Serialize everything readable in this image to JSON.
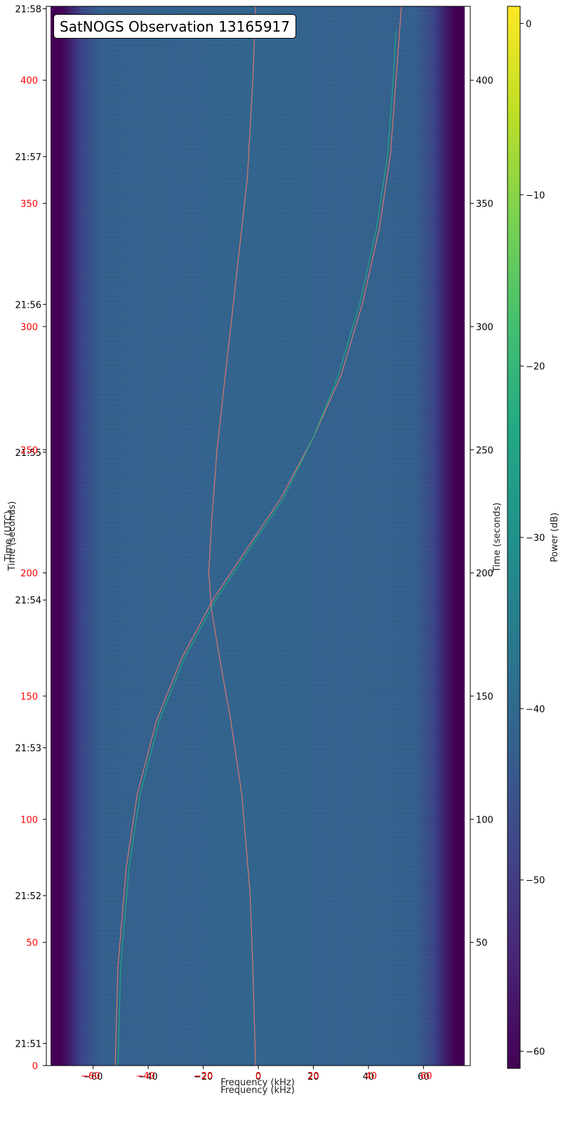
{
  "chart_data": {
    "type": "heatmap",
    "title": "SatNOGS Observation 13165917",
    "xlabel": "Frequency (kHz)",
    "ylabel_left_black": "Time (UTC)",
    "ylabel_left_red": "Time (seconds)",
    "ylabel_right": "Time (seconds)",
    "colorbar_label": "Power (dB)",
    "colormap": "viridis",
    "xlim": [
      -77,
      77
    ],
    "ylim_seconds": [
      0,
      430
    ],
    "colorbar_range": [
      -61,
      1
    ],
    "x_ticks": [
      "−60",
      "−40",
      "−20",
      "0",
      "20",
      "40",
      "60"
    ],
    "x_tick_values": [
      -60,
      -40,
      -20,
      0,
      20,
      40,
      60
    ],
    "x_ticks_red": [
      "−60",
      "−40",
      "−20",
      "0",
      "20",
      "40",
      "60"
    ],
    "x_ticks_red_values": [
      -61,
      -41,
      -20,
      0,
      20,
      41,
      61
    ],
    "y_ticks_utc": [
      "21:51",
      "21:52",
      "21:53",
      "21:54",
      "21:55",
      "21:56",
      "21:57",
      "21:58"
    ],
    "y_ticks_utc_seconds": [
      9,
      69,
      129,
      189,
      249,
      309,
      369,
      429
    ],
    "y_ticks_left_red": [
      "0",
      "50",
      "100",
      "150",
      "200",
      "250",
      "300",
      "350",
      "400"
    ],
    "y_ticks_left_red_values": [
      0,
      50,
      100,
      150,
      200,
      250,
      300,
      350,
      400
    ],
    "y_ticks_right": [
      "50",
      "100",
      "150",
      "200",
      "250",
      "300",
      "350",
      "400"
    ],
    "y_ticks_right_values": [
      50,
      100,
      150,
      200,
      250,
      300,
      350,
      400
    ],
    "colorbar_ticks": [
      "0",
      "−10",
      "−20",
      "−30",
      "−40",
      "−50",
      "−60"
    ],
    "colorbar_tick_values": [
      0,
      -10,
      -20,
      -30,
      -40,
      -50,
      -60
    ],
    "colors": {
      "background_noise": "#355f8d",
      "band_edge": "#440154",
      "signal_trace": "#22a884",
      "doppler_curve": "#e87a6e",
      "red_tick": "#ff0000"
    },
    "series": [
      {
        "type": "doppler-curve",
        "points": [
          [
            -1,
            0
          ],
          [
            -2,
            40
          ],
          [
            -3,
            70
          ],
          [
            -6,
            110
          ],
          [
            -10,
            140
          ],
          [
            -14,
            165
          ],
          [
            -17,
            185
          ],
          [
            -18,
            200
          ],
          [
            -17,
            220
          ],
          [
            -15,
            250
          ],
          [
            -12,
            280
          ],
          [
            -10,
            300
          ],
          [
            -7,
            330
          ],
          [
            -4,
            360
          ],
          [
            -2,
            400
          ],
          [
            -1,
            430
          ]
        ]
      },
      {
        "type": "doppler-curve",
        "points": [
          [
            -52,
            0
          ],
          [
            -51,
            40
          ],
          [
            -48,
            80
          ],
          [
            -44,
            110
          ],
          [
            -37,
            140
          ],
          [
            -28,
            165
          ],
          [
            -16,
            190
          ],
          [
            -4,
            210
          ],
          [
            8,
            230
          ],
          [
            20,
            255
          ],
          [
            30,
            280
          ],
          [
            38,
            310
          ],
          [
            44,
            340
          ],
          [
            48,
            370
          ],
          [
            50,
            400
          ],
          [
            52,
            430
          ]
        ]
      },
      {
        "type": "satellite-signal",
        "points": [
          [
            -51,
            0
          ],
          [
            -50,
            40
          ],
          [
            -47,
            80
          ],
          [
            -43,
            110
          ],
          [
            -36,
            140
          ],
          [
            -27,
            165
          ],
          [
            -15,
            190
          ],
          [
            -3,
            210
          ],
          [
            9,
            230
          ],
          [
            20,
            255
          ],
          [
            29,
            280
          ],
          [
            37,
            310
          ],
          [
            43,
            340
          ],
          [
            47,
            370
          ],
          [
            49,
            400
          ],
          [
            50,
            420
          ]
        ]
      }
    ]
  }
}
